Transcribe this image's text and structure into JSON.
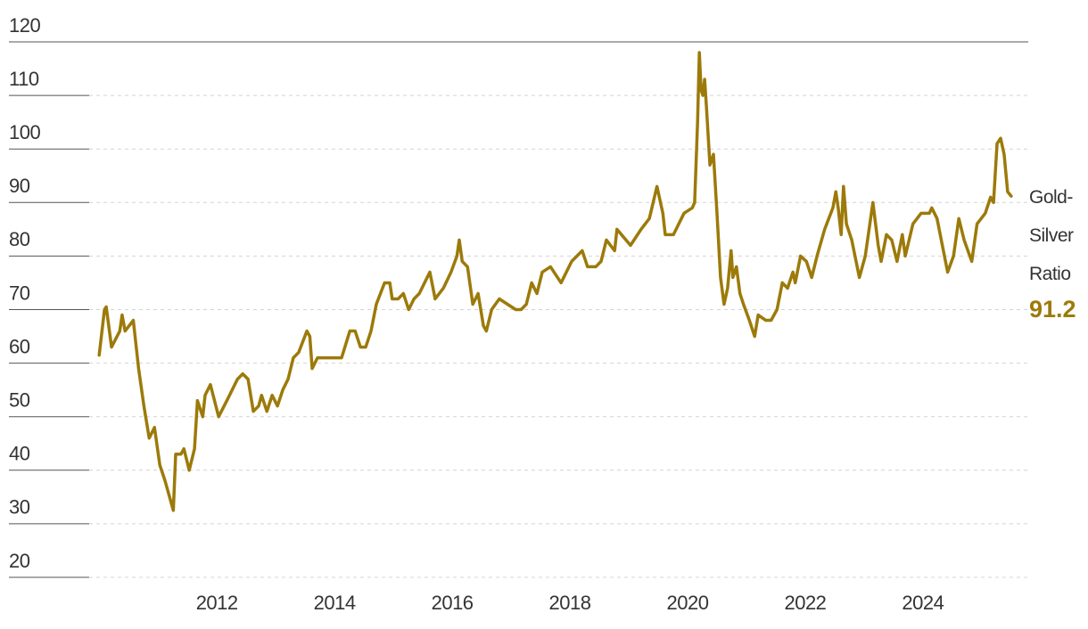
{
  "chart_data": {
    "type": "line",
    "x": [
      2010.0,
      2010.09,
      2010.12,
      2010.21,
      2010.35,
      2010.39,
      2010.44,
      2010.58,
      2010.67,
      2010.76,
      2010.85,
      2010.94,
      2011.03,
      2011.12,
      2011.26,
      2011.3,
      2011.39,
      2011.44,
      2011.53,
      2011.62,
      2011.67,
      2011.76,
      2011.8,
      2011.89,
      2012.03,
      2012.17,
      2012.35,
      2012.44,
      2012.53,
      2012.62,
      2012.71,
      2012.76,
      2012.85,
      2012.94,
      2013.03,
      2013.12,
      2013.21,
      2013.3,
      2013.39,
      2013.53,
      2013.58,
      2013.62,
      2013.71,
      2013.85,
      2013.98,
      2014.12,
      2014.26,
      2014.35,
      2014.44,
      2014.53,
      2014.62,
      2014.71,
      2014.85,
      2014.94,
      2014.98,
      2015.08,
      2015.17,
      2015.26,
      2015.35,
      2015.44,
      2015.53,
      2015.62,
      2015.71,
      2015.85,
      2015.98,
      2016.08,
      2016.12,
      2016.17,
      2016.26,
      2016.35,
      2016.44,
      2016.53,
      2016.58,
      2016.67,
      2016.8,
      2016.94,
      2017.08,
      2017.17,
      2017.26,
      2017.35,
      2017.44,
      2017.53,
      2017.67,
      2017.85,
      2018.03,
      2018.21,
      2018.3,
      2018.44,
      2018.53,
      2018.62,
      2018.76,
      2018.8,
      2019.03,
      2019.21,
      2019.35,
      2019.48,
      2019.58,
      2019.62,
      2019.76,
      2019.94,
      2020.08,
      2020.12,
      2020.17,
      2020.2,
      2020.23,
      2020.26,
      2020.29,
      2020.32,
      2020.38,
      2020.44,
      2020.5,
      2020.56,
      2020.62,
      2020.68,
      2020.74,
      2020.77,
      2020.83,
      2020.89,
      2020.95,
      2021.05,
      2021.14,
      2021.2,
      2021.33,
      2021.42,
      2021.52,
      2021.61,
      2021.7,
      2021.79,
      2021.83,
      2021.92,
      2022.02,
      2022.11,
      2022.2,
      2022.33,
      2022.47,
      2022.52,
      2022.56,
      2022.61,
      2022.65,
      2022.7,
      2022.79,
      2022.92,
      2023.02,
      2023.15,
      2023.24,
      2023.29,
      2023.38,
      2023.47,
      2023.56,
      2023.65,
      2023.7,
      2023.83,
      2023.97,
      2024.11,
      2024.15,
      2024.24,
      2024.33,
      2024.42,
      2024.52,
      2024.61,
      2024.7,
      2024.83,
      2024.92,
      2025.06,
      2025.15,
      2025.2,
      2025.26,
      2025.32,
      2025.38,
      2025.44,
      2025.5
    ],
    "series": [
      {
        "name": "Gold-Silver Ratio",
        "color": "#9c7a0a",
        "values": [
          61.5,
          70,
          70.5,
          63,
          66,
          69,
          66,
          68,
          59,
          52,
          46,
          48,
          41,
          38,
          32.5,
          43,
          43,
          44,
          40,
          44,
          53,
          50,
          54,
          56,
          50,
          53,
          57,
          58,
          57,
          51,
          52,
          54,
          51,
          54,
          52,
          55,
          57,
          61,
          62,
          66,
          65,
          59,
          61,
          61,
          61,
          61,
          66,
          66,
          63,
          63,
          66,
          71,
          75,
          75,
          72,
          72,
          73,
          70,
          72,
          73,
          75,
          77,
          72,
          74,
          77,
          80,
          83,
          79,
          78,
          71,
          73,
          67,
          66,
          70,
          72,
          71,
          70,
          70,
          71,
          75,
          73,
          77,
          78,
          75,
          79,
          81,
          78,
          78,
          79,
          83,
          81,
          85,
          82,
          85,
          87,
          93,
          88,
          84,
          84,
          88,
          89,
          90,
          105,
          118,
          111,
          110,
          113,
          108,
          97,
          99,
          88,
          76,
          71,
          74,
          81,
          76,
          78,
          73,
          71,
          68,
          65,
          69,
          68,
          68,
          70,
          75,
          74,
          77,
          75,
          80,
          79,
          76,
          80,
          85,
          89,
          92,
          89,
          84,
          93,
          86,
          83,
          76,
          80,
          90,
          82,
          79,
          84,
          83,
          79,
          84,
          80,
          86,
          88,
          88,
          89,
          87,
          82,
          77,
          80,
          87,
          83,
          79,
          86,
          88,
          91,
          90,
          101,
          102,
          99,
          92,
          91.2
        ]
      }
    ],
    "xlim": [
      2009.83,
      2025.79
    ],
    "xticks": [
      2012,
      2014,
      2016,
      2018,
      2020,
      2022,
      2024
    ],
    "ylim": [
      20,
      120
    ],
    "yticks": [
      20,
      30,
      40,
      50,
      60,
      70,
      80,
      90,
      100,
      110,
      120
    ],
    "grid": true
  }
}
